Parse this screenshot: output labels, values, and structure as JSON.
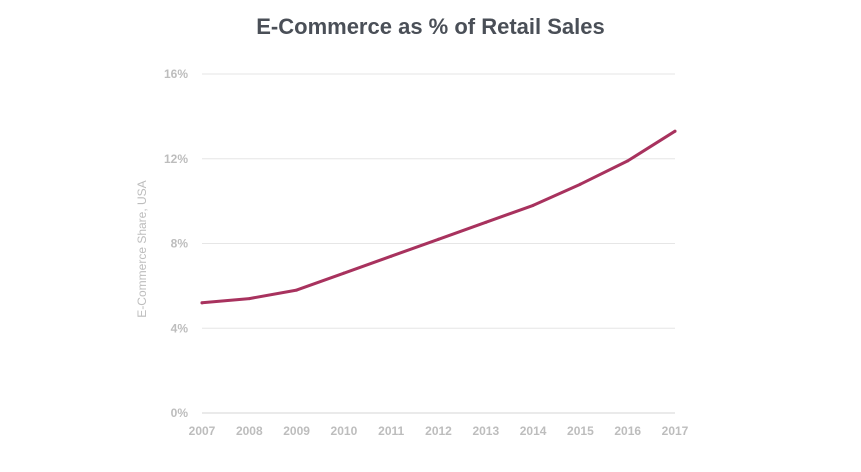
{
  "chart_data": {
    "type": "line",
    "title": "E-Commerce as % of Retail Sales",
    "xlabel": "",
    "ylabel": "E-Commerce Share, USA",
    "x": [
      2007,
      2008,
      2009,
      2010,
      2011,
      2012,
      2013,
      2014,
      2015,
      2016,
      2017
    ],
    "x_tick_labels": [
      "2007",
      "2008",
      "2009",
      "2010",
      "2011",
      "2012",
      "2013",
      "2014",
      "2015",
      "2016",
      "2017"
    ],
    "y_ticks": [
      0,
      4,
      8,
      12,
      16
    ],
    "y_tick_labels": [
      "0%",
      "4%",
      "8%",
      "12%",
      "16%"
    ],
    "ylim": [
      0,
      16
    ],
    "grid": true,
    "legend": "none",
    "series": [
      {
        "color": "#a8325e",
        "values": [
          5.2,
          5.4,
          5.8,
          6.6,
          7.4,
          8.2,
          9.0,
          9.8,
          10.8,
          11.9,
          13.3
        ]
      }
    ]
  }
}
